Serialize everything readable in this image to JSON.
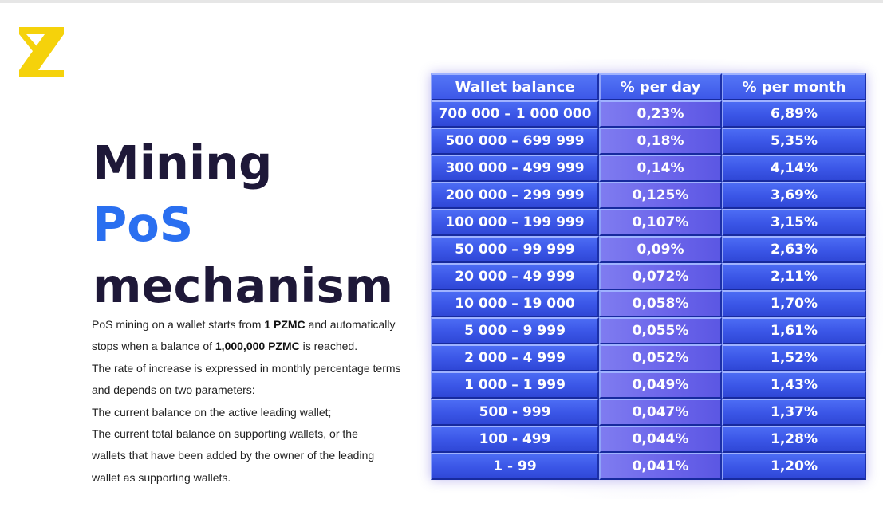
{
  "logo": {
    "icon": "z-logo-icon",
    "color": "#f5d20b"
  },
  "title": {
    "line1": "Mining",
    "line2": "PoS",
    "line3": "mechanism",
    "accent_color": "#2a6ff0",
    "text_color": "#1e1838"
  },
  "description": {
    "line1_pre": "PoS mining on a wallet starts from ",
    "line1_bold": "1 PZMC",
    "line1_post": " and automatically",
    "line2_pre": "stops when a balance of ",
    "line2_bold": "1,000,000 PZMC",
    "line2_post": " is reached.",
    "line3": "The rate of increase is expressed in monthly percentage terms",
    "line4": "and depends on two parameters:",
    "line5": "The current balance on the active leading wallet;",
    "line6": "The current total balance on supporting wallets, or the",
    "line7": "wallets that have been added by the owner of the leading",
    "line8": "wallet as supporting wallets."
  },
  "table": {
    "headers": [
      "Wallet balance",
      "% per day",
      "% per month"
    ],
    "rows": [
      [
        "700 000 – 1 000 000",
        "0,23%",
        "6,89%"
      ],
      [
        "500 000 – 699 999",
        "0,18%",
        "5,35%"
      ],
      [
        "300 000 – 499 999",
        "0,14%",
        "4,14%"
      ],
      [
        "200 000 – 299 999",
        "0,125%",
        "3,69%"
      ],
      [
        "100 000 – 199 999",
        "0,107%",
        "3,15%"
      ],
      [
        "50 000 – 99 999",
        "0,09%",
        "2,63%"
      ],
      [
        "20 000 – 49 999",
        "0,072%",
        "2,11%"
      ],
      [
        "10 000 – 19 000",
        "0,058%",
        "1,70%"
      ],
      [
        "5 000 – 9 999",
        "0,055%",
        "1,61%"
      ],
      [
        "2 000 – 4 999",
        "0,052%",
        "1,52%"
      ],
      [
        "1 000 – 1 999",
        "0,049%",
        "1,43%"
      ],
      [
        "500 - 999",
        "0,047%",
        "1,37%"
      ],
      [
        "100 - 499",
        "0,044%",
        "1,28%"
      ],
      [
        "1 - 99",
        "0,041%",
        "1,20%"
      ]
    ],
    "colors": {
      "cell_blue": "#3a55e6",
      "cell_violet": "#6a63ea",
      "text": "#ffffff"
    }
  }
}
